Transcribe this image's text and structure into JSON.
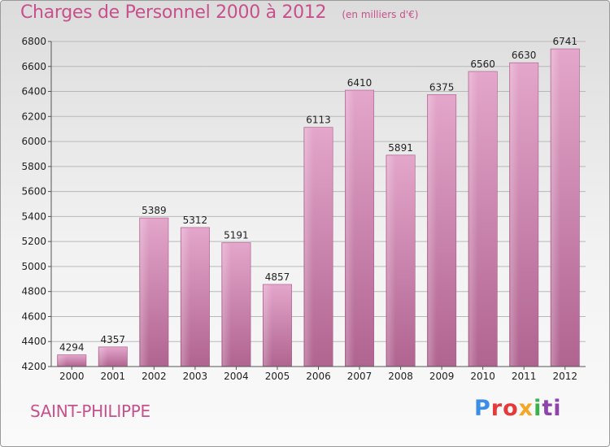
{
  "chart_data": {
    "type": "bar",
    "title": "Charges de Personnel 2000 à 2012",
    "subtitle": "(en milliers d'€)",
    "categories": [
      "2000",
      "2001",
      "2002",
      "2003",
      "2004",
      "2005",
      "2006",
      "2007",
      "2008",
      "2009",
      "2010",
      "2011",
      "2012"
    ],
    "values": [
      4294,
      4357,
      5389,
      5312,
      5191,
      4857,
      6113,
      6410,
      5891,
      6375,
      6560,
      6630,
      6741
    ],
    "ylim": [
      4200,
      6800
    ],
    "yticks": [
      4200,
      4400,
      4600,
      4800,
      5000,
      5200,
      5400,
      5600,
      5800,
      6000,
      6200,
      6400,
      6600,
      6800
    ],
    "grid": true,
    "bar_color": "#c9689e"
  },
  "commune": "SAINT-PHILIPPE",
  "logo": {
    "parts": [
      "P",
      "ro",
      "x",
      "i",
      "ti"
    ]
  }
}
